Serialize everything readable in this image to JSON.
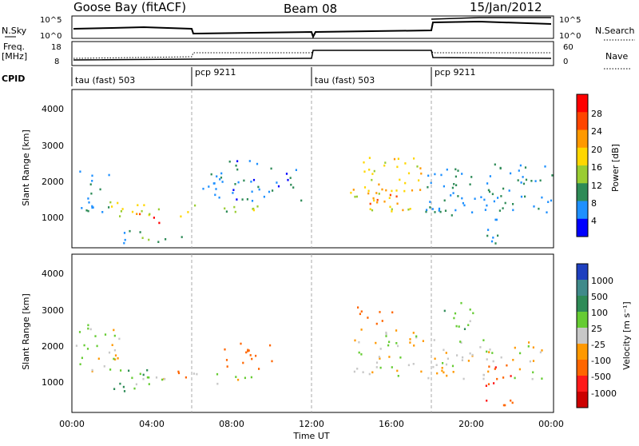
{
  "header": {
    "site": "Goose Bay (fitACF)",
    "beam": "Beam 08",
    "date": "15/Jan/2012"
  },
  "strip": {
    "nsky_label": "N.Sky",
    "nsearch_label": "N.Search",
    "nsky_ticks": [
      "10^5",
      "10^0"
    ],
    "nsearch_ticks": [
      "10^5",
      "10^0"
    ],
    "freq_label_line1": "Freq.",
    "freq_label_line2": "[MHz]",
    "freq_ticks": [
      "18",
      "8"
    ],
    "nave_label": "Nave",
    "nave_ticks": [
      "60",
      "0"
    ],
    "cpid_label": "CPID",
    "cpid_blocks": [
      {
        "label": "tau (fast) 503",
        "start": 0,
        "end": 6
      },
      {
        "label": "pcp 9211",
        "start": 6,
        "end": 12
      },
      {
        "label": "tau (fast) 503",
        "start": 12,
        "end": 18
      },
      {
        "label": "pcp 9211",
        "start": 18,
        "end": 24
      }
    ]
  },
  "xaxis": {
    "label": "Time UT",
    "ticks": [
      "00:00",
      "04:00",
      "08:00",
      "12:00",
      "16:00",
      "20:00",
      "00:00"
    ]
  },
  "power_panel": {
    "ylabel": "Slant Range [km]",
    "yticks": [
      "4000",
      "3000",
      "2000",
      "1000"
    ],
    "cbar_label": "Power [dB]",
    "cbar_ticks": [
      "28",
      "24",
      "20",
      "16",
      "12",
      "8",
      "4"
    ],
    "cbar_colors": [
      "#ff0000",
      "#ff4500",
      "#ff9900",
      "#ffd700",
      "#9acd32",
      "#2e8b57",
      "#1e90ff",
      "#0000ff"
    ]
  },
  "velocity_panel": {
    "ylabel": "Slant Range [km]",
    "yticks": [
      "4000",
      "3000",
      "2000",
      "1000"
    ],
    "cbar_label": "Velocity [m s⁻¹]",
    "cbar_ticks": [
      "1000",
      "500",
      "100",
      "25",
      "-25",
      "-100",
      "-500",
      "-1000"
    ],
    "cbar_colors": [
      "#1e3fbf",
      "#3f8a8a",
      "#2e8b57",
      "#66cc33",
      "#c8c8c8",
      "#ff9900",
      "#ff6600",
      "#ff1a1a",
      "#cc0000"
    ]
  },
  "chart_data": [
    {
      "type": "heatmap",
      "title": "Power [dB]",
      "xlabel": "Time UT",
      "ylabel": "Slant Range [km]",
      "xlim": [
        0,
        24
      ],
      "ylim": [
        200,
        4500
      ],
      "clim": [
        0,
        30
      ],
      "regions": [
        {
          "t0": 0.3,
          "t1": 2.0,
          "r0": 1100,
          "r1": 2300,
          "v": 6
        },
        {
          "t0": 1.8,
          "t1": 3.8,
          "r0": 900,
          "r1": 1500,
          "v": 14
        },
        {
          "t0": 3.0,
          "t1": 4.6,
          "r0": 850,
          "r1": 1150,
          "v": 27
        },
        {
          "t0": 3.8,
          "t1": 5.8,
          "r0": 1050,
          "r1": 1350,
          "v": 16
        },
        {
          "t0": 2.5,
          "t1": 5.5,
          "r0": 300,
          "r1": 700,
          "v": 8
        },
        {
          "t0": 6.0,
          "t1": 9.5,
          "r0": 1100,
          "r1": 1400,
          "v": 12
        },
        {
          "t0": 6.5,
          "t1": 11.5,
          "r0": 1500,
          "r1": 2600,
          "v": 5
        },
        {
          "t0": 13.8,
          "t1": 17.5,
          "r0": 1200,
          "r1": 2700,
          "v": 18
        },
        {
          "t0": 14.5,
          "t1": 17.0,
          "r0": 1300,
          "r1": 1800,
          "v": 22
        },
        {
          "t0": 17.5,
          "t1": 24.0,
          "r0": 1100,
          "r1": 2500,
          "v": 6
        },
        {
          "t0": 20.5,
          "t1": 21.5,
          "r0": 200,
          "r1": 1800,
          "v": 5
        }
      ]
    },
    {
      "type": "heatmap",
      "title": "Velocity [m s-1]",
      "xlabel": "Time UT",
      "ylabel": "Slant Range [km]",
      "xlim": [
        0,
        24
      ],
      "ylim": [
        200,
        4500
      ],
      "clim": [
        -1000,
        1000
      ],
      "regions": [
        {
          "t0": 0.0,
          "t1": 2.5,
          "r0": 1300,
          "r1": 2600,
          "v": 0
        },
        {
          "t0": 1.5,
          "t1": 4.5,
          "r0": 800,
          "r1": 1400,
          "v": 80
        },
        {
          "t0": 3.5,
          "t1": 5.5,
          "r0": 900,
          "r1": 1200,
          "v": 0
        },
        {
          "t0": 5.0,
          "t1": 6.0,
          "r0": 1000,
          "r1": 1400,
          "v": -300
        },
        {
          "t0": 6.0,
          "t1": 9.0,
          "r0": 1000,
          "r1": 1300,
          "v": 0
        },
        {
          "t0": 7.5,
          "t1": 10.0,
          "r0": 1400,
          "r1": 2100,
          "v": -300
        },
        {
          "t0": 13.8,
          "t1": 17.5,
          "r0": 1200,
          "r1": 2500,
          "v": 0
        },
        {
          "t0": 14.0,
          "t1": 16.0,
          "r0": 2600,
          "r1": 3100,
          "v": -300
        },
        {
          "t0": 17.5,
          "t1": 23.5,
          "r0": 1100,
          "r1": 2200,
          "v": 0
        },
        {
          "t0": 18.5,
          "t1": 20.0,
          "r0": 2400,
          "r1": 3300,
          "v": 60
        },
        {
          "t0": 20.5,
          "t1": 22.0,
          "r0": 400,
          "r1": 1600,
          "v": -500
        }
      ]
    }
  ]
}
